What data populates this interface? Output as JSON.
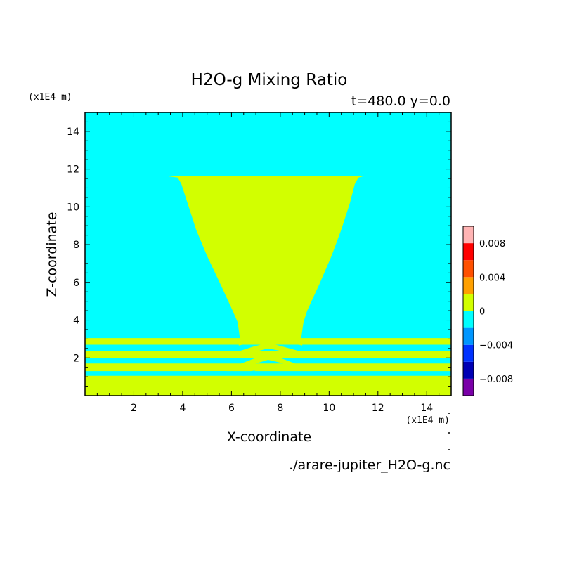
{
  "chart_data": {
    "type": "heatmap",
    "title": "H2O-g Mixing Ratio",
    "subtitle": "t=480.0 y=0.0",
    "xlabel": "X-coordinate",
    "ylabel": "Z-coordinate",
    "x_unit": "(x1E4 m)",
    "y_unit": "(x1E4 m)",
    "xlim": [
      0,
      15
    ],
    "ylim": [
      0,
      15
    ],
    "x_ticks": [
      2,
      4,
      6,
      8,
      10,
      12,
      14
    ],
    "y_ticks": [
      2,
      4,
      6,
      8,
      10,
      12,
      14
    ],
    "grid": false,
    "legend_placement": "right",
    "colorbar": {
      "levels": [
        -0.01,
        -0.008,
        -0.006,
        -0.004,
        -0.002,
        0,
        0.002,
        0.004,
        0.006,
        0.008,
        0.01
      ],
      "colors": [
        "#7a00a8",
        "#0000b4",
        "#0032ff",
        "#0096ff",
        "#00ffff",
        "#d2ff00",
        "#ffa000",
        "#ff5000",
        "#ff0000",
        "#ffb4b4"
      ],
      "labels": [
        {
          "value": -0.008,
          "text": "−0.008"
        },
        {
          "value": -0.004,
          "text": "−0.004"
        },
        {
          "value": 0,
          "text": "0"
        },
        {
          "value": 0.004,
          "text": "0.004"
        },
        {
          "value": 0.008,
          "text": "0.008"
        }
      ]
    },
    "background_color": "#00ffff",
    "regions": [
      {
        "name": "cloud-plume",
        "level": "0..0.002",
        "color": "#d2ff00",
        "polygon": [
          [
            3.2,
            11.65
          ],
          [
            11.5,
            11.65
          ],
          [
            11.2,
            11.55
          ],
          [
            11.05,
            11.2
          ],
          [
            10.85,
            10.2
          ],
          [
            10.5,
            8.8
          ],
          [
            10.1,
            7.4
          ],
          [
            9.6,
            5.9
          ],
          [
            9.1,
            4.5
          ],
          [
            8.95,
            3.9
          ],
          [
            8.85,
            3.0
          ],
          [
            6.35,
            3.0
          ],
          [
            6.25,
            3.9
          ],
          [
            6.05,
            4.5
          ],
          [
            5.55,
            5.9
          ],
          [
            5.0,
            7.4
          ],
          [
            4.55,
            8.8
          ],
          [
            4.2,
            10.2
          ],
          [
            3.95,
            11.2
          ],
          [
            3.8,
            11.55
          ]
        ]
      },
      {
        "name": "layer-1",
        "level": "0..0.002",
        "color": "#d2ff00",
        "polygon": [
          [
            0,
            3.05
          ],
          [
            15,
            3.05
          ],
          [
            15,
            2.7
          ],
          [
            0,
            2.7
          ]
        ]
      },
      {
        "name": "layer-2",
        "level": "0..0.002",
        "color": "#d2ff00",
        "polygon": [
          [
            0,
            2.35
          ],
          [
            15,
            2.35
          ],
          [
            15,
            2.0
          ],
          [
            0,
            2.0
          ]
        ]
      },
      {
        "name": "layer-3",
        "level": "0..0.002",
        "color": "#d2ff00",
        "polygon": [
          [
            0,
            1.7
          ],
          [
            15,
            1.7
          ],
          [
            15,
            1.3
          ],
          [
            0,
            1.3
          ]
        ]
      },
      {
        "name": "layer-4",
        "level": "0..0.002",
        "color": "#d2ff00",
        "polygon": [
          [
            0,
            1.05
          ],
          [
            15,
            1.05
          ],
          [
            15,
            0
          ],
          [
            0,
            0
          ]
        ]
      },
      {
        "name": "wave-arch-1",
        "level": "0..0.002",
        "color": "#d2ff00",
        "polygon": [
          [
            6.3,
            2.8
          ],
          [
            6.9,
            3.05
          ],
          [
            7.6,
            3.2
          ],
          [
            8.3,
            3.05
          ],
          [
            8.9,
            2.8
          ],
          [
            8.9,
            2.65
          ],
          [
            8.3,
            2.85
          ],
          [
            7.6,
            3.0
          ],
          [
            6.9,
            2.85
          ],
          [
            6.3,
            2.65
          ]
        ]
      },
      {
        "name": "wave-arch-2",
        "level": "0..0.002",
        "color": "#d2ff00",
        "polygon": [
          [
            6.3,
            2.35
          ],
          [
            6.9,
            2.6
          ],
          [
            7.5,
            2.8
          ],
          [
            8.1,
            2.6
          ],
          [
            8.8,
            2.35
          ],
          [
            8.8,
            2.1
          ],
          [
            8.1,
            2.35
          ],
          [
            7.5,
            2.5
          ],
          [
            6.9,
            2.3
          ],
          [
            6.3,
            2.05
          ]
        ]
      },
      {
        "name": "wave-arch-3",
        "level": "0..0.002",
        "color": "#d2ff00",
        "polygon": [
          [
            6.4,
            1.7
          ],
          [
            7.0,
            2.0
          ],
          [
            7.5,
            2.2
          ],
          [
            8.0,
            2.0
          ],
          [
            8.6,
            1.7
          ],
          [
            8.6,
            1.5
          ],
          [
            8.0,
            1.75
          ],
          [
            7.5,
            1.9
          ],
          [
            7.0,
            1.7
          ],
          [
            6.4,
            1.4
          ]
        ]
      },
      {
        "name": "wave-gap-1",
        "level": "-0.002..0",
        "color": "#00ffff",
        "polygon": [
          [
            4.3,
            1.3
          ],
          [
            5.8,
            1.3
          ],
          [
            5.8,
            1.2
          ],
          [
            4.3,
            1.2
          ]
        ]
      },
      {
        "name": "wave-gap-2",
        "level": "-0.002..0",
        "color": "#00ffff",
        "polygon": [
          [
            9.4,
            1.3
          ],
          [
            10.9,
            1.3
          ],
          [
            10.9,
            1.2
          ],
          [
            9.4,
            1.2
          ]
        ]
      },
      {
        "name": "wave-gap-3",
        "level": "-0.002..0",
        "color": "#00ffff",
        "polygon": [
          [
            6.0,
            1.3
          ],
          [
            6.5,
            1.2
          ],
          [
            7.0,
            1.35
          ],
          [
            6.5,
            1.05
          ],
          [
            6.0,
            1.1
          ]
        ]
      }
    ]
  },
  "source_file": "./arare-jupiter_H2O-g.nc"
}
